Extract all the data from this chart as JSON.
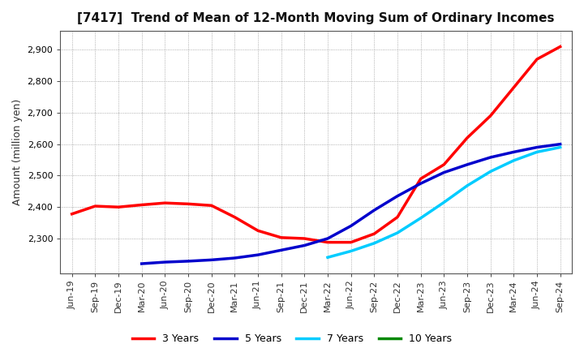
{
  "title": "[7417]  Trend of Mean of 12-Month Moving Sum of Ordinary Incomes",
  "ylabel": "Amount (million yen)",
  "background_color": "#ffffff",
  "grid_color": "#999999",
  "x_labels": [
    "Jun-19",
    "Sep-19",
    "Dec-19",
    "Mar-20",
    "Jun-20",
    "Sep-20",
    "Dec-20",
    "Mar-21",
    "Jun-21",
    "Sep-21",
    "Dec-21",
    "Mar-22",
    "Jun-22",
    "Sep-22",
    "Dec-22",
    "Mar-23",
    "Jun-23",
    "Sep-23",
    "Dec-23",
    "Mar-24",
    "Jun-24",
    "Sep-24"
  ],
  "ylim": [
    2190,
    2960
  ],
  "yticks": [
    2300,
    2400,
    2500,
    2600,
    2700,
    2800,
    2900
  ],
  "series": [
    {
      "label": "3 Years",
      "color": "#ff0000",
      "data_x": [
        0,
        1,
        2,
        3,
        4,
        5,
        6,
        7,
        8,
        9,
        10,
        11,
        12,
        13,
        14,
        15,
        16,
        17,
        18,
        19,
        20,
        21
      ],
      "data_y": [
        2378,
        2403,
        2400,
        2407,
        2413,
        2410,
        2405,
        2368,
        2325,
        2303,
        2300,
        2288,
        2288,
        2315,
        2368,
        2490,
        2535,
        2620,
        2690,
        2780,
        2870,
        2910
      ]
    },
    {
      "label": "5 Years",
      "color": "#0000cc",
      "data_x": [
        3,
        4,
        5,
        6,
        7,
        8,
        9,
        10,
        11,
        12,
        13,
        14,
        15,
        16,
        17,
        18,
        19,
        20,
        21
      ],
      "data_y": [
        2220,
        2225,
        2228,
        2232,
        2238,
        2248,
        2263,
        2278,
        2300,
        2340,
        2390,
        2435,
        2475,
        2510,
        2535,
        2558,
        2575,
        2590,
        2600
      ]
    },
    {
      "label": "7 Years",
      "color": "#00ccff",
      "data_x": [
        11,
        12,
        13,
        14,
        15,
        16,
        17,
        18,
        19,
        20,
        21
      ],
      "data_y": [
        2240,
        2260,
        2285,
        2318,
        2365,
        2415,
        2468,
        2513,
        2548,
        2575,
        2590
      ]
    },
    {
      "label": "10 Years",
      "color": "#008800",
      "data_x": [],
      "data_y": []
    }
  ],
  "legend_ncol": 4,
  "linewidth": 2.5,
  "title_fontsize": 11,
  "axis_fontsize": 8,
  "ylabel_fontsize": 9
}
